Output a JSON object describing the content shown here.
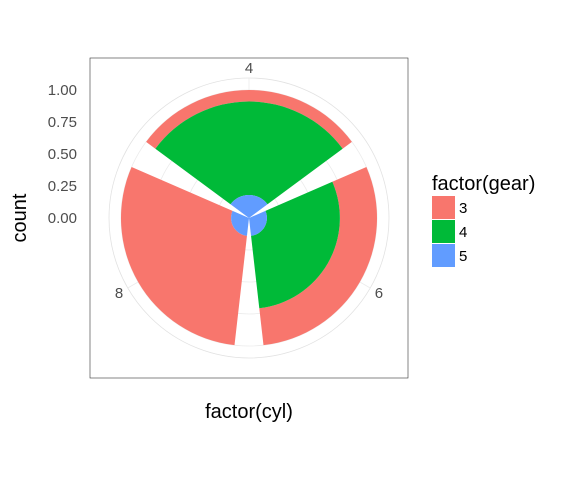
{
  "chart_data": {
    "type": "bar",
    "coord": "polar",
    "position": "fill",
    "categories": [
      "4",
      "6",
      "8"
    ],
    "series": [
      {
        "name": "3",
        "values": [
          0.09,
          0.29,
          0.86
        ],
        "color": "#F8766D"
      },
      {
        "name": "4",
        "values": [
          0.73,
          0.57,
          0.0
        ],
        "color": "#00BA38"
      },
      {
        "name": "5",
        "values": [
          0.18,
          0.14,
          0.14
        ],
        "color": "#619CFF"
      }
    ],
    "xlabel": "factor(cyl)",
    "ylabel": "count",
    "y_ticks": [
      "0.00",
      "0.25",
      "0.50",
      "0.75",
      "1.00"
    ],
    "y_tick_values": [
      0,
      0.25,
      0.5,
      0.75,
      1.0
    ],
    "ylim": [
      0,
      1.0
    ],
    "grid": true,
    "legend": {
      "title": "factor(gear)",
      "position": "right",
      "labels": [
        "3",
        "4",
        "5"
      ]
    }
  }
}
